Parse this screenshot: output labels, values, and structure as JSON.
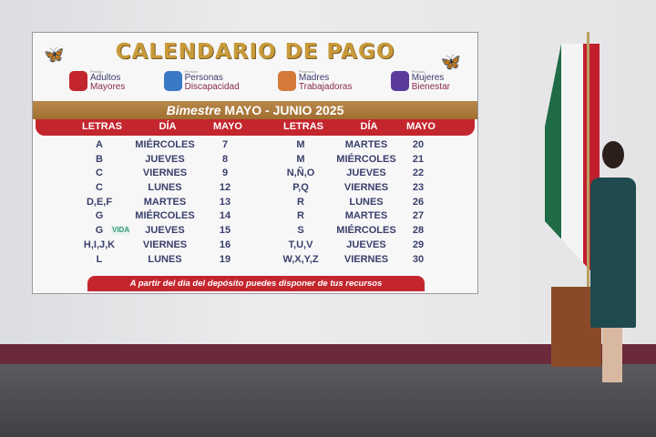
{
  "screen": {
    "title": "CALENDARIO DE PAGO",
    "programs": [
      {
        "kicker": "Pensión",
        "line1": "Adultos",
        "line2": "Mayores",
        "color": "#c4262e"
      },
      {
        "kicker": "Pensión",
        "line1": "Personas",
        "line2": "Discapacidad",
        "color": "#3a7ac4"
      },
      {
        "kicker": "Programa",
        "line1": "Madres",
        "line2": "Trabajadoras",
        "color": "#d47a3a"
      },
      {
        "kicker": "Pensión",
        "line1": "Mujeres",
        "line2": "Bienestar",
        "color": "#5a3a9a"
      }
    ],
    "period_prefix": "Bimestre",
    "period": "MAYO - JUNIO 2025",
    "headers": [
      "LETRAS",
      "DÍA",
      "MAYO",
      "LETRAS",
      "DÍA",
      "MAYO"
    ],
    "rows": [
      [
        "A",
        "MIÉRCOLES",
        "7",
        "M",
        "MARTES",
        "20"
      ],
      [
        "B",
        "JUEVES",
        "8",
        "M",
        "MIÉRCOLES",
        "21"
      ],
      [
        "C",
        "VIERNES",
        "9",
        "N,Ñ,O",
        "JUEVES",
        "22"
      ],
      [
        "C",
        "LUNES",
        "12",
        "P,Q",
        "VIERNES",
        "23"
      ],
      [
        "D,E,F",
        "MARTES",
        "13",
        "R",
        "LUNES",
        "26"
      ],
      [
        "G",
        "MIÉRCOLES",
        "14",
        "R",
        "MARTES",
        "27"
      ],
      [
        "G",
        "JUEVES",
        "15",
        "S",
        "MIÉRCOLES",
        "28"
      ],
      [
        "H,I,J,K",
        "VIERNES",
        "16",
        "T,U,V",
        "JUEVES",
        "29"
      ],
      [
        "L",
        "LUNES",
        "19",
        "W,X,Y,Z",
        "VIERNES",
        "30"
      ]
    ],
    "watermark": "VIDA",
    "footer": "A partir del día del depósito puedes disponer de tus recursos",
    "colors": {
      "title": "#c89a3a",
      "header": "#c4262e",
      "band": "#b8874a",
      "text": "#3a3f6a"
    }
  }
}
